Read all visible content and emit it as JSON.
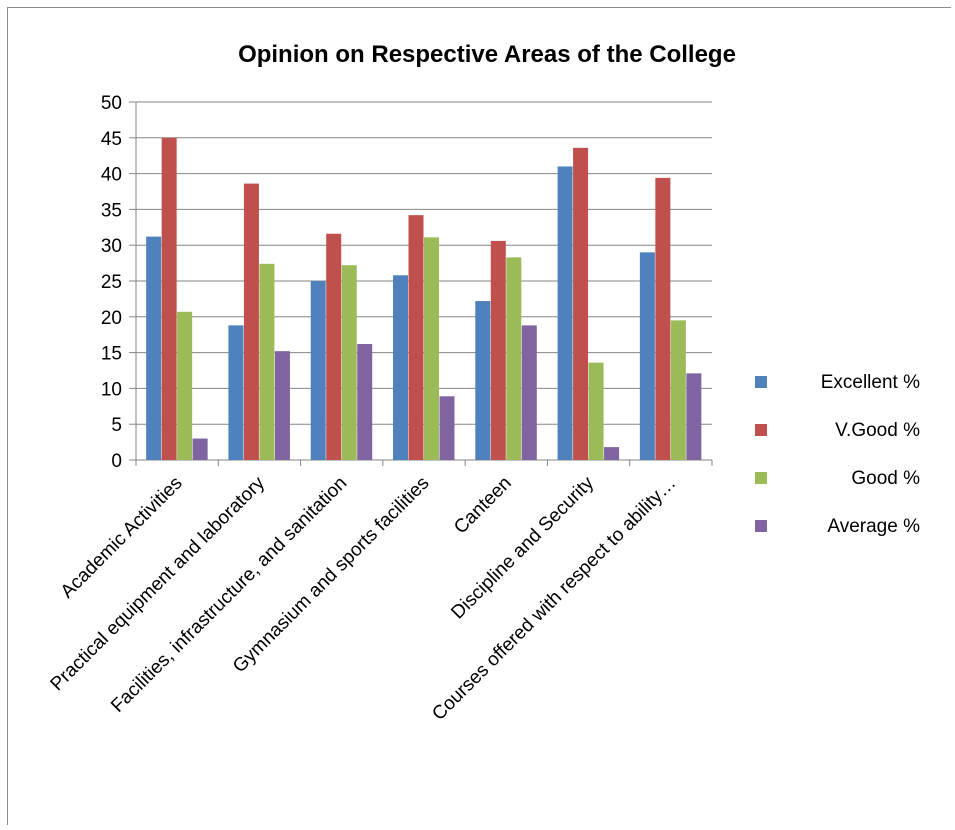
{
  "chart_data": {
    "type": "bar",
    "title": "Opinion on Respective Areas of the College",
    "xlabel": "",
    "ylabel": "",
    "ylim": [
      0,
      50
    ],
    "yticks": [
      0,
      5,
      10,
      15,
      20,
      25,
      30,
      35,
      40,
      45,
      50
    ],
    "grid": true,
    "legend_position": "right",
    "categories": [
      "Academic Activities",
      "Practical equipment and laboratory",
      "Facilities, infrastructure, and sanitation",
      "Gymnasium and sports facilities",
      "Canteen",
      "Discipline and Security",
      "Courses offered with respect to ability…"
    ],
    "series": [
      {
        "name": "Excellent %",
        "color": "#4f81bd",
        "values": [
          31.2,
          18.8,
          25.0,
          25.8,
          22.2,
          41.0,
          29.0
        ]
      },
      {
        "name": "V.Good %",
        "color": "#c0504d",
        "values": [
          45.0,
          38.6,
          31.6,
          34.2,
          30.6,
          43.6,
          39.4
        ]
      },
      {
        "name": "Good %",
        "color": "#9bbb59",
        "values": [
          20.7,
          27.4,
          27.2,
          31.1,
          28.3,
          13.6,
          19.5
        ]
      },
      {
        "name": "Average %",
        "color": "#8064a2",
        "values": [
          3.0,
          15.2,
          16.2,
          8.9,
          18.8,
          1.8,
          12.1
        ]
      }
    ]
  }
}
